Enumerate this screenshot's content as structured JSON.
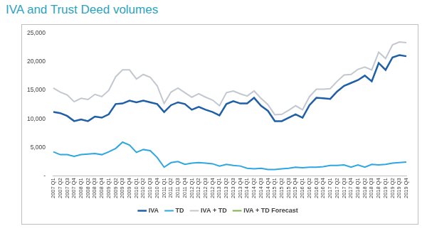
{
  "chart_data": {
    "type": "line",
    "title": "IVA and Trust Deed volumes",
    "categories": [
      "2007 Q1",
      "2007 Q2",
      "2007 Q3",
      "2007 Q4",
      "2008 Q1",
      "2008 Q2",
      "2008 Q3",
      "2008 Q4",
      "2009 Q1",
      "2009 Q2",
      "2009 Q3",
      "2009 Q4",
      "2010 Q1",
      "2010 Q2",
      "2010 Q3",
      "2010 Q4",
      "2011 Q1",
      "2011 Q2",
      "2011 Q3",
      "2011 Q4",
      "2012 Q1",
      "2012 Q2",
      "2012 Q3",
      "2012 Q4",
      "2013 Q1",
      "2013 Q2",
      "2013 Q3",
      "2013 Q4",
      "2014 Q1",
      "2014 Q2",
      "2014 Q3",
      "2014 Q4",
      "2015 Q1",
      "2015 Q2",
      "2015 Q3",
      "2015 Q4",
      "2016 Q1",
      "2016 Q2",
      "2016 Q3",
      "2016 Q4",
      "2017 Q1",
      "2017 Q2",
      "2017 Q3",
      "2017 Q4",
      "2018 Q1",
      "2018 Q2",
      "2018 Q3",
      "2018 Q4",
      "2019 Q1",
      "2019 Q2",
      "2019 Q3",
      "2019 Q4"
    ],
    "series": [
      {
        "name": "IVA",
        "color": "#1f5fa8",
        "values": [
          11200,
          11000,
          10500,
          9600,
          9900,
          9600,
          10400,
          10200,
          10800,
          12600,
          12700,
          13200,
          12900,
          13200,
          12900,
          12600,
          11200,
          12400,
          12900,
          12600,
          11600,
          12100,
          11600,
          11200,
          10600,
          12600,
          13100,
          12700,
          12700,
          13700,
          12300,
          11400,
          9600,
          9600,
          10200,
          10800,
          10200,
          12400,
          13700,
          13600,
          13500,
          14800,
          15800,
          16300,
          16800,
          17600,
          16600,
          19800,
          18600,
          20800,
          21200,
          21000
        ]
      },
      {
        "name": "TD",
        "color": "#2ea7e0",
        "values": [
          4200,
          3700,
          3700,
          3400,
          3700,
          3800,
          3900,
          3700,
          4200,
          4800,
          5900,
          5400,
          4100,
          4600,
          4400,
          3200,
          1500,
          2300,
          2500,
          2000,
          2200,
          2300,
          2200,
          2100,
          1700,
          2000,
          1800,
          1700,
          1300,
          1200,
          1300,
          1100,
          1100,
          1200,
          1300,
          1500,
          1400,
          1500,
          1500,
          1600,
          1800,
          1800,
          1900,
          1500,
          1900,
          1500,
          2000,
          1900,
          2000,
          2200,
          2300,
          2400
        ]
      },
      {
        "name": "IVA + TD",
        "color": "#c3c7cf",
        "values": [
          15400,
          14700,
          14200,
          13000,
          13600,
          13400,
          14300,
          13900,
          15000,
          17400,
          18600,
          18600,
          17000,
          17800,
          17300,
          15800,
          12700,
          14700,
          15400,
          14600,
          13800,
          14400,
          13800,
          13300,
          12300,
          14600,
          14900,
          14400,
          14000,
          14900,
          13600,
          12500,
          10700,
          10800,
          11500,
          12300,
          11600,
          13900,
          15200,
          15200,
          15300,
          16600,
          17700,
          17800,
          18700,
          19100,
          18600,
          21700,
          20600,
          23000,
          23500,
          23400
        ]
      },
      {
        "name": "IVA + TD Forecast",
        "color": "#7cb342",
        "values": [
          null,
          null,
          null,
          null,
          null,
          null,
          null,
          null,
          null,
          null,
          null,
          null,
          null,
          null,
          null,
          null,
          null,
          null,
          null,
          null,
          null,
          null,
          null,
          null,
          null,
          null,
          null,
          null,
          null,
          null,
          null,
          null,
          null,
          null,
          null,
          null,
          null,
          null,
          null,
          null,
          null,
          null,
          null,
          null,
          null,
          null,
          null,
          null,
          null,
          null,
          null,
          null
        ]
      }
    ],
    "ylim": [
      0,
      25000
    ],
    "yticks": [
      {
        "value": 0,
        "label": "-"
      },
      {
        "value": 5000,
        "label": "5,000"
      },
      {
        "value": 10000,
        "label": "10,000"
      },
      {
        "value": 15000,
        "label": "15,000"
      },
      {
        "value": 20000,
        "label": "20,000"
      },
      {
        "value": 25000,
        "label": "25,000"
      }
    ],
    "grid": false,
    "legend": "bottom"
  }
}
